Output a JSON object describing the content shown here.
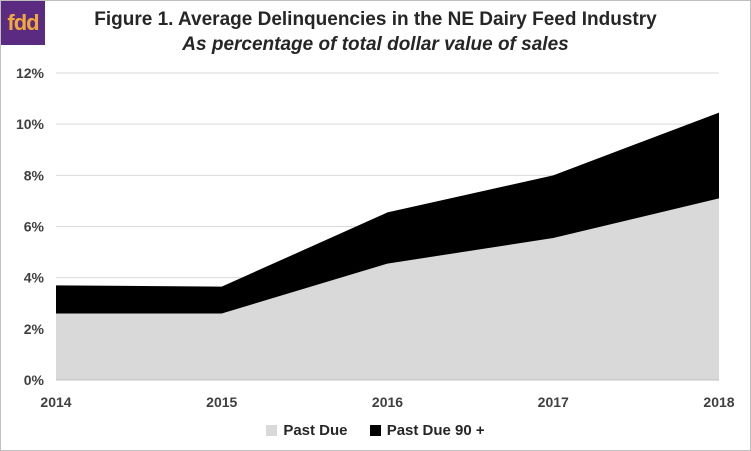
{
  "logo": {
    "text": "fdd",
    "background": "#5b2b82",
    "color": "#f2a93b"
  },
  "chart_data": {
    "type": "area",
    "stacked": true,
    "title": "Figure 1. Average Delinquencies in the NE Dairy Feed Industry",
    "subtitle": "As percentage of total dollar value of sales",
    "x": [
      "2014",
      "2015",
      "2016",
      "2017",
      "2018"
    ],
    "y_ticks": [
      "0%",
      "2%",
      "4%",
      "6%",
      "8%",
      "10%",
      "12%"
    ],
    "ylim": [
      0,
      12
    ],
    "grid": true,
    "legend_position": "bottom",
    "series": [
      {
        "name": "Past Due",
        "values": [
          2.6,
          2.6,
          4.55,
          5.55,
          7.1
        ],
        "color": "#d9d9d9"
      },
      {
        "name": "Past Due 90 +",
        "values": [
          1.1,
          1.05,
          2.0,
          2.45,
          3.35
        ],
        "color": "#000000"
      }
    ]
  }
}
